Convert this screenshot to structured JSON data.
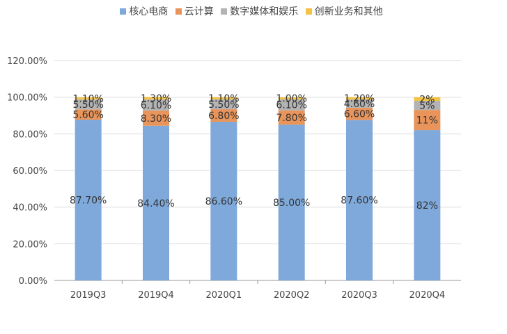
{
  "chart_data": {
    "type": "bar",
    "stacked": true,
    "categories": [
      "2019Q3",
      "2019Q4",
      "2020Q1",
      "2020Q2",
      "2020Q3",
      "2020Q4"
    ],
    "series": [
      {
        "name": "核心电商",
        "color": "#7FA9DA",
        "values": [
          87.7,
          84.4,
          86.6,
          85.0,
          87.6,
          82
        ],
        "labels": [
          "87.70%",
          "84.40%",
          "86.60%",
          "85.00%",
          "87.60%",
          "82%"
        ]
      },
      {
        "name": "云计算",
        "color": "#E8945A",
        "values": [
          5.6,
          8.3,
          6.8,
          7.8,
          6.6,
          11
        ],
        "labels": [
          "5.60%",
          "8.30%",
          "6.80%",
          "7.80%",
          "6.60%",
          "11%"
        ]
      },
      {
        "name": "数字媒体和娱乐",
        "color": "#B3B3B3",
        "values": [
          5.5,
          6.1,
          5.5,
          6.1,
          4.6,
          5
        ],
        "labels": [
          "5.50%",
          "6.10%",
          "5.50%",
          "6.10%",
          "4.60%",
          "5%"
        ]
      },
      {
        "name": "创新业务和其他",
        "color": "#F5C343",
        "values": [
          1.1,
          1.3,
          1.1,
          1.0,
          1.2,
          2
        ],
        "labels": [
          "1.10%",
          "1.30%",
          "1.10%",
          "1.00%",
          "1.20%",
          "2%"
        ]
      }
    ],
    "yticks": [
      "0.00%",
      "20.00%",
      "40.00%",
      "60.00%",
      "80.00%",
      "100.00%",
      "120.00%"
    ],
    "ylim": [
      0,
      120
    ],
    "grid": true,
    "legend_position": "top"
  }
}
